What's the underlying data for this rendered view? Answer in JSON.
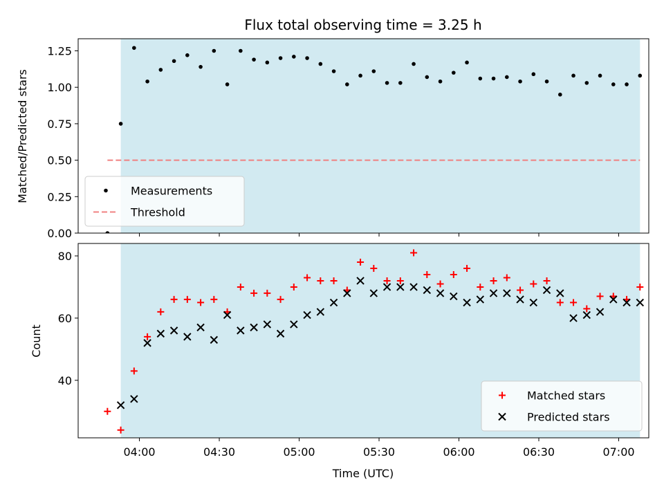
{
  "chart_data": [
    {
      "type": "scatter",
      "title": "Flux total observing time = 3.25 h",
      "xlabel": "",
      "ylabel": "Matched/Predicted stars",
      "xlim": [
        "03:37",
        "07:08"
      ],
      "ylim": [
        0,
        1.333
      ],
      "yticks": [
        0.0,
        0.25,
        0.5,
        0.75,
        1.0,
        1.25
      ],
      "ytick_labels": [
        "0.00",
        "0.25",
        "0.50",
        "0.75",
        "1.00",
        "1.25"
      ],
      "shaded_interval": [
        "03:53",
        "07:08"
      ],
      "shade_color": "#add8e6",
      "threshold": {
        "name": "Threshold",
        "value": 0.5,
        "x_start": "03:48",
        "x_end": "07:08",
        "color": "#f08080",
        "style": "dashed"
      },
      "legend": {
        "placement": "lower-left",
        "entries": [
          "Measurements",
          "Threshold"
        ]
      },
      "series": [
        {
          "name": "Measurements",
          "marker": "dot",
          "color": "#000000",
          "x": [
            "03:48",
            "03:53",
            "03:58",
            "04:03",
            "04:08",
            "04:13",
            "04:18",
            "04:23",
            "04:28",
            "04:33",
            "04:38",
            "04:43",
            "04:48",
            "04:53",
            "04:58",
            "05:03",
            "05:08",
            "05:13",
            "05:18",
            "05:23",
            "05:28",
            "05:33",
            "05:38",
            "05:43",
            "05:48",
            "05:53",
            "05:58",
            "06:03",
            "06:08",
            "06:13",
            "06:18",
            "06:23",
            "06:28",
            "06:33",
            "06:38",
            "06:43",
            "06:48",
            "06:53",
            "06:58",
            "07:03",
            "07:08"
          ],
          "y": [
            0.0,
            0.75,
            1.27,
            1.04,
            1.12,
            1.18,
            1.22,
            1.14,
            1.25,
            1.02,
            1.25,
            1.19,
            1.17,
            1.2,
            1.21,
            1.2,
            1.16,
            1.11,
            1.02,
            1.08,
            1.11,
            1.03,
            1.03,
            1.16,
            1.07,
            1.04,
            1.1,
            1.17,
            1.06,
            1.06,
            1.07,
            1.04,
            1.09,
            1.04,
            0.95,
            1.08,
            1.03,
            1.08,
            1.02,
            1.02,
            1.08
          ]
        }
      ]
    },
    {
      "type": "scatter",
      "title": "",
      "xlabel": "Time (UTC)",
      "ylabel": "Count",
      "xlim": [
        "03:37",
        "07:08"
      ],
      "xticks": [
        "04:00",
        "04:30",
        "05:00",
        "05:30",
        "06:00",
        "06:30",
        "07:00"
      ],
      "ylim": [
        21.5,
        84
      ],
      "yticks": [
        40,
        60,
        80
      ],
      "ytick_labels": [
        "40",
        "60",
        "80"
      ],
      "shaded_interval": [
        "03:53",
        "07:08"
      ],
      "shade_color": "#add8e6",
      "legend": {
        "placement": "lower-right",
        "entries": [
          "Matched stars",
          "Predicted stars"
        ]
      },
      "series": [
        {
          "name": "Matched stars",
          "marker": "plus",
          "color": "#ff0000",
          "x": [
            "03:48",
            "03:53",
            "03:58",
            "04:03",
            "04:08",
            "04:13",
            "04:18",
            "04:23",
            "04:28",
            "04:33",
            "04:38",
            "04:43",
            "04:48",
            "04:53",
            "04:58",
            "05:03",
            "05:08",
            "05:13",
            "05:18",
            "05:23",
            "05:28",
            "05:33",
            "05:38",
            "05:43",
            "05:48",
            "05:53",
            "05:58",
            "06:03",
            "06:08",
            "06:13",
            "06:18",
            "06:23",
            "06:28",
            "06:33",
            "06:38",
            "06:43",
            "06:48",
            "06:53",
            "06:58",
            "07:03",
            "07:08"
          ],
          "y": [
            30,
            24,
            43,
            54,
            62,
            66,
            66,
            65,
            66,
            62,
            70,
            68,
            68,
            66,
            70,
            73,
            72,
            72,
            69,
            78,
            76,
            72,
            72,
            81,
            74,
            71,
            74,
            76,
            70,
            72,
            73,
            69,
            71,
            72,
            65,
            65,
            63,
            67,
            67,
            66,
            70
          ]
        },
        {
          "name": "Predicted stars",
          "marker": "x",
          "color": "#000000",
          "x": [
            "03:53",
            "03:58",
            "04:03",
            "04:08",
            "04:13",
            "04:18",
            "04:23",
            "04:28",
            "04:33",
            "04:38",
            "04:43",
            "04:48",
            "04:53",
            "04:58",
            "05:03",
            "05:08",
            "05:13",
            "05:18",
            "05:23",
            "05:28",
            "05:33",
            "05:38",
            "05:43",
            "05:48",
            "05:53",
            "05:58",
            "06:03",
            "06:08",
            "06:13",
            "06:18",
            "06:23",
            "06:28",
            "06:33",
            "06:38",
            "06:43",
            "06:48",
            "06:53",
            "06:58",
            "07:03",
            "07:08"
          ],
          "y": [
            32,
            34,
            52,
            55,
            56,
            54,
            57,
            53,
            61,
            56,
            57,
            58,
            55,
            58,
            61,
            62,
            65,
            68,
            72,
            68,
            70,
            70,
            70,
            69,
            68,
            67,
            65,
            66,
            68,
            68,
            66,
            65,
            69,
            68,
            60,
            61,
            62,
            66,
            65,
            65
          ]
        }
      ]
    }
  ]
}
